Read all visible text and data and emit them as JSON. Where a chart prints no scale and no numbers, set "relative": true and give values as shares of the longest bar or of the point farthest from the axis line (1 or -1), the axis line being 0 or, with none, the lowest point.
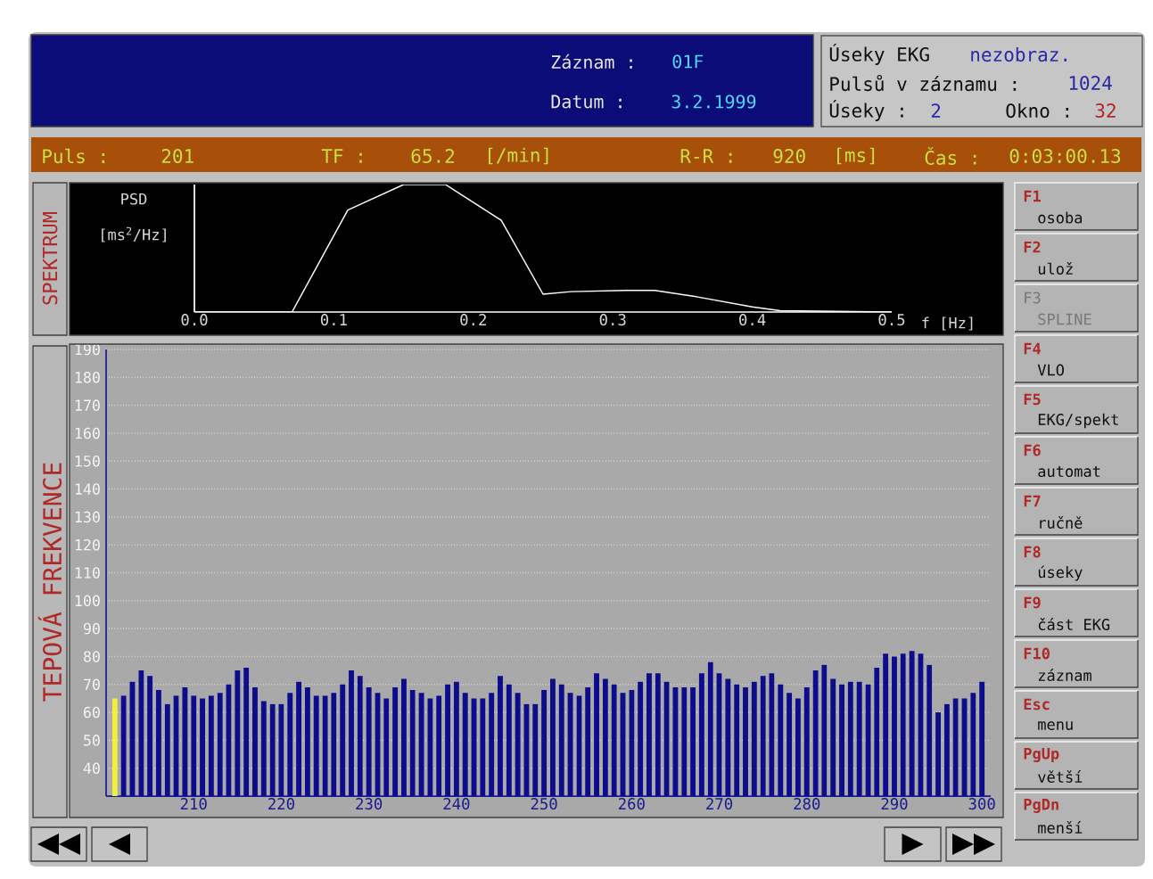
{
  "chart_data": [
    {
      "type": "line",
      "xlabel": "f [Hz]",
      "ylabel": "PSD [ms$^{2}$/Hz]",
      "relative": true,
      "color": "#ffffff",
      "x": [
        0,
        0.07,
        0.11,
        0.15,
        0.18,
        0.22,
        0.25,
        0.27,
        0.31,
        0.33,
        0.36,
        0.4,
        0.42,
        0.5
      ],
      "values": [
        0,
        0,
        0.8,
        1,
        1,
        0.72,
        0.14,
        0.16,
        0.17,
        0.17,
        0.12,
        0.04,
        0.01,
        0
      ],
      "xlim": [
        0,
        0.5
      ],
      "xticks": [
        {
          "value": 0,
          "label": "0.0"
        },
        0.1,
        0.2,
        0.3,
        0.4,
        0.5
      ]
    },
    {
      "type": "bar",
      "title": "TEPOVÁ FREKVENCE",
      "grid": "y",
      "x": [
        201,
        202,
        203,
        204,
        205,
        206,
        207,
        208,
        209,
        210,
        211,
        212,
        213,
        214,
        215,
        216,
        217,
        218,
        219,
        220,
        221,
        222,
        223,
        224,
        225,
        226,
        227,
        228,
        229,
        230,
        231,
        232,
        233,
        234,
        235,
        236,
        237,
        238,
        239,
        240,
        241,
        242,
        243,
        244,
        245,
        246,
        247,
        248,
        249,
        250,
        251,
        252,
        253,
        254,
        255,
        256,
        257,
        258,
        259,
        260,
        261,
        262,
        263,
        264,
        265,
        266,
        267,
        268,
        269,
        270,
        271,
        272,
        273,
        274,
        275,
        276,
        277,
        278,
        279,
        280,
        281,
        282,
        283,
        284,
        285,
        286,
        287,
        288,
        289,
        290,
        291,
        292,
        293,
        294,
        295,
        296,
        297,
        298,
        299,
        300
      ],
      "values": [
        65,
        66,
        71,
        75,
        73,
        68,
        63,
        66,
        69,
        66,
        65,
        66,
        67,
        70,
        75,
        76,
        69,
        64,
        63,
        63,
        67,
        71,
        69,
        66,
        66,
        67,
        70,
        75,
        73,
        69,
        67,
        65,
        69,
        72,
        68,
        67,
        65,
        66,
        70,
        71,
        67,
        65,
        65,
        67,
        73,
        70,
        67,
        63,
        63,
        68,
        72,
        70,
        67,
        66,
        69,
        74,
        72,
        70,
        67,
        68,
        71,
        74,
        74,
        71,
        69,
        69,
        69,
        74,
        78,
        74,
        72,
        70,
        69,
        71,
        73,
        74,
        70,
        67,
        65,
        69,
        75,
        77,
        72,
        70,
        71,
        71,
        70,
        76,
        81,
        80,
        81,
        82,
        81,
        77,
        60,
        63,
        65,
        65,
        67,
        71
      ],
      "colors": [
        "#f0f040",
        "#0c0c8c",
        "#0c0c8c",
        "#0c0c8c",
        "#0c0c8c",
        "#0c0c8c",
        "#0c0c8c",
        "#0c0c8c",
        "#0c0c8c",
        "#0c0c8c",
        "#0c0c8c",
        "#0c0c8c",
        "#0c0c8c",
        "#0c0c8c",
        "#0c0c8c",
        "#0c0c8c",
        "#0c0c8c",
        "#0c0c8c",
        "#0c0c8c",
        "#0c0c8c",
        "#0c0c8c",
        "#0c0c8c",
        "#0c0c8c",
        "#0c0c8c",
        "#0c0c8c",
        "#0c0c8c",
        "#0c0c8c",
        "#0c0c8c",
        "#0c0c8c",
        "#0c0c8c",
        "#0c0c8c",
        "#0c0c8c",
        "#0c0c8c",
        "#0c0c8c",
        "#0c0c8c",
        "#0c0c8c",
        "#0c0c8c",
        "#0c0c8c",
        "#0c0c8c",
        "#0c0c8c",
        "#0c0c8c",
        "#0c0c8c",
        "#0c0c8c",
        "#0c0c8c",
        "#0c0c8c",
        "#0c0c8c",
        "#0c0c8c",
        "#0c0c8c",
        "#0c0c8c",
        "#0c0c8c",
        "#0c0c8c",
        "#0c0c8c",
        "#0c0c8c",
        "#0c0c8c",
        "#0c0c8c",
        "#0c0c8c",
        "#0c0c8c",
        "#0c0c8c",
        "#0c0c8c",
        "#0c0c8c",
        "#0c0c8c",
        "#0c0c8c",
        "#0c0c8c",
        "#0c0c8c",
        "#0c0c8c",
        "#0c0c8c",
        "#0c0c8c",
        "#0c0c8c",
        "#0c0c8c",
        "#0c0c8c",
        "#0c0c8c",
        "#0c0c8c",
        "#0c0c8c",
        "#0c0c8c",
        "#0c0c8c",
        "#0c0c8c",
        "#0c0c8c",
        "#0c0c8c",
        "#0c0c8c",
        "#0c0c8c",
        "#0c0c8c",
        "#0c0c8c",
        "#0c0c8c",
        "#0c0c8c",
        "#0c0c8c",
        "#0c0c8c",
        "#0c0c8c",
        "#0c0c8c",
        "#0c0c8c",
        "#0c0c8c",
        "#0c0c8c",
        "#0c0c8c",
        "#0c0c8c",
        "#0c0c8c",
        "#0c0c8c",
        "#0c0c8c",
        "#0c0c8c",
        "#0c0c8c",
        "#0c0c8c",
        "#0c0c8c"
      ],
      "xlim": [
        200,
        301
      ],
      "ylim": [
        30,
        190
      ],
      "xticks": [
        210,
        220,
        230,
        240,
        250,
        260,
        270,
        280,
        290,
        300
      ],
      "yticks": [
        40,
        50,
        60,
        70,
        80,
        90,
        100,
        110,
        120,
        130,
        140,
        150,
        160,
        170,
        180,
        190
      ]
    },
    {
      "type": "other",
      "annotations": [
        "Záznam :",
        "01F",
        "Datum :",
        "3.2.1999",
        "Úseky EKG",
        "nezobraz.",
        "Pulsů v záznamu :",
        "1024",
        "Úseky :",
        "2",
        "Okno :",
        "32",
        "Puls :",
        "201",
        "TF :",
        "65.2",
        "[/min]",
        "R-R :",
        "920",
        "[ms]",
        "Čas :",
        "0:03:00.13",
        "SPEKTRUM",
        "F1",
        "osoba",
        "F2",
        "ulož",
        "F3",
        "SPLINE",
        "F4",
        "VLO",
        "F5",
        "EKG/spekt",
        "F6",
        "automat",
        "F7",
        "ručně",
        "F8",
        "úseky",
        "F9",
        "část EKG",
        "F10",
        "záznam",
        "Esc",
        "menu",
        "PgUp",
        "větší",
        "PgDn",
        "menší"
      ]
    }
  ]
}
